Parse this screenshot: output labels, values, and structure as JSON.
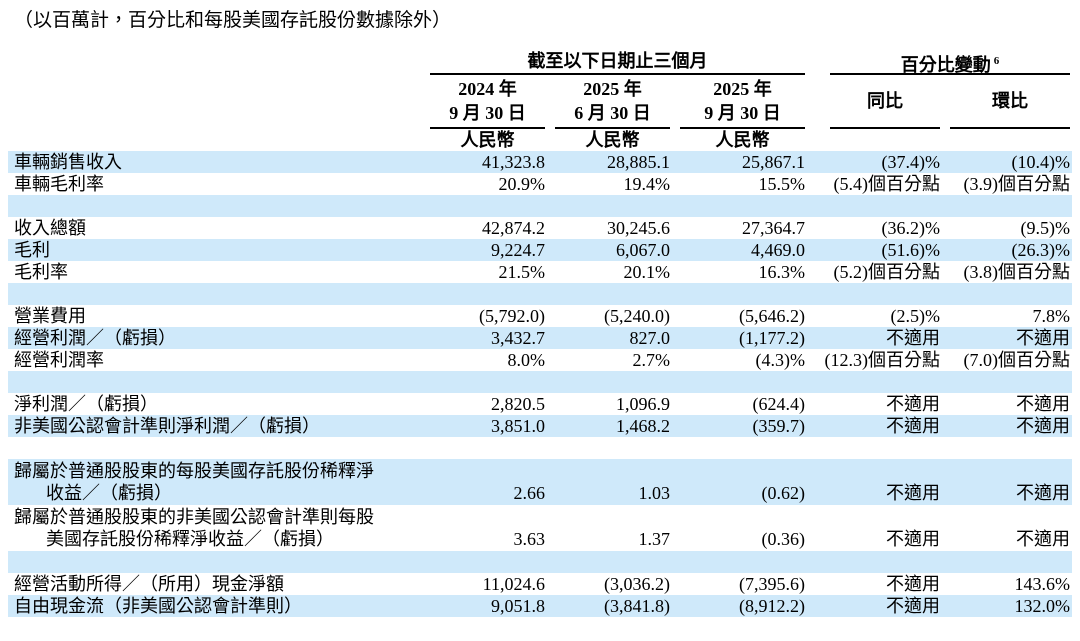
{
  "note": "（以百萬計，百分比和每股美國存託股份數據除外）",
  "table": {
    "shade_color": "#cfe9fa",
    "period_group": "截至以下日期止三個月",
    "change_group": "百分比變動",
    "change_group_footnote": "6",
    "period_cols": [
      {
        "year": "2024 年",
        "date": "9 月 30 日",
        "currency": "人民幣"
      },
      {
        "year": "2025 年",
        "date": "6 月 30 日",
        "currency": "人民幣"
      },
      {
        "year": "2025 年",
        "date": "9 月 30 日",
        "currency": "人民幣"
      }
    ],
    "change_cols": [
      "同比",
      "環比"
    ],
    "rows": [
      {
        "label": "車輛銷售收入",
        "values": [
          "41,323.8",
          "28,885.1",
          "25,867.1",
          "(37.4)%",
          "(10.4)%"
        ],
        "shade": true
      },
      {
        "label": "車輛毛利率",
        "values": [
          "20.9%",
          "19.4%",
          "15.5%",
          "(5.4)個百分點",
          "(3.9)個百分點"
        ],
        "shade": false
      },
      {
        "spacer": true,
        "shade": true
      },
      {
        "label": "收入總額",
        "values": [
          "42,874.2",
          "30,245.6",
          "27,364.7",
          "(36.2)%",
          "(9.5)%"
        ],
        "shade": false
      },
      {
        "label": "毛利",
        "values": [
          "9,224.7",
          "6,067.0",
          "4,469.0",
          "(51.6)%",
          "(26.3)%"
        ],
        "shade": true
      },
      {
        "label": "毛利率",
        "values": [
          "21.5%",
          "20.1%",
          "16.3%",
          "(5.2)個百分點",
          "(3.8)個百分點"
        ],
        "shade": false
      },
      {
        "spacer": true,
        "shade": true
      },
      {
        "label": "營業費用",
        "values": [
          "(5,792.0)",
          "(5,240.0)",
          "(5,646.2)",
          "(2.5)%",
          "7.8%"
        ],
        "shade": false
      },
      {
        "label": "經營利潤／（虧損）",
        "values": [
          "3,432.7",
          "827.0",
          "(1,177.2)",
          "不適用",
          "不適用"
        ],
        "shade": true
      },
      {
        "label": "經營利潤率",
        "values": [
          "8.0%",
          "2.7%",
          "(4.3)%",
          "(12.3)個百分點",
          "(7.0)個百分點"
        ],
        "shade": false
      },
      {
        "spacer": true,
        "shade": true
      },
      {
        "label": "淨利潤／（虧損）",
        "values": [
          "2,820.5",
          "1,096.9",
          "(624.4)",
          "不適用",
          "不適用"
        ],
        "shade": false
      },
      {
        "label": "非美國公認會計準則淨利潤／（虧損）",
        "values": [
          "3,851.0",
          "1,468.2",
          "(359.7)",
          "不適用",
          "不適用"
        ],
        "shade": true
      },
      {
        "spacer": true,
        "shade": false
      },
      {
        "label_lines": [
          "歸屬於普通股股東的每股美國存託股份稀釋淨",
          "收益／（虧損）"
        ],
        "values": [
          "2.66",
          "1.03",
          "(0.62)",
          "不適用",
          "不適用"
        ],
        "shade": true
      },
      {
        "label_lines": [
          "歸屬於普通股股東的非美國公認會計準則每股",
          "美國存託股份稀釋淨收益／（虧損）"
        ],
        "values": [
          "3.63",
          "1.37",
          "(0.36)",
          "不適用",
          "不適用"
        ],
        "shade": false
      },
      {
        "spacer": true,
        "shade": true
      },
      {
        "label": "經營活動所得／（所用）現金淨額",
        "values": [
          "11,024.6",
          "(3,036.2)",
          "(7,395.6)",
          "不適用",
          "143.6%"
        ],
        "shade": false
      },
      {
        "label": "自由現金流（非美國公認會計準則）",
        "values": [
          "9,051.8",
          "(3,841.8)",
          "(8,912.2)",
          "不適用",
          "132.0%"
        ],
        "shade": true
      }
    ]
  }
}
